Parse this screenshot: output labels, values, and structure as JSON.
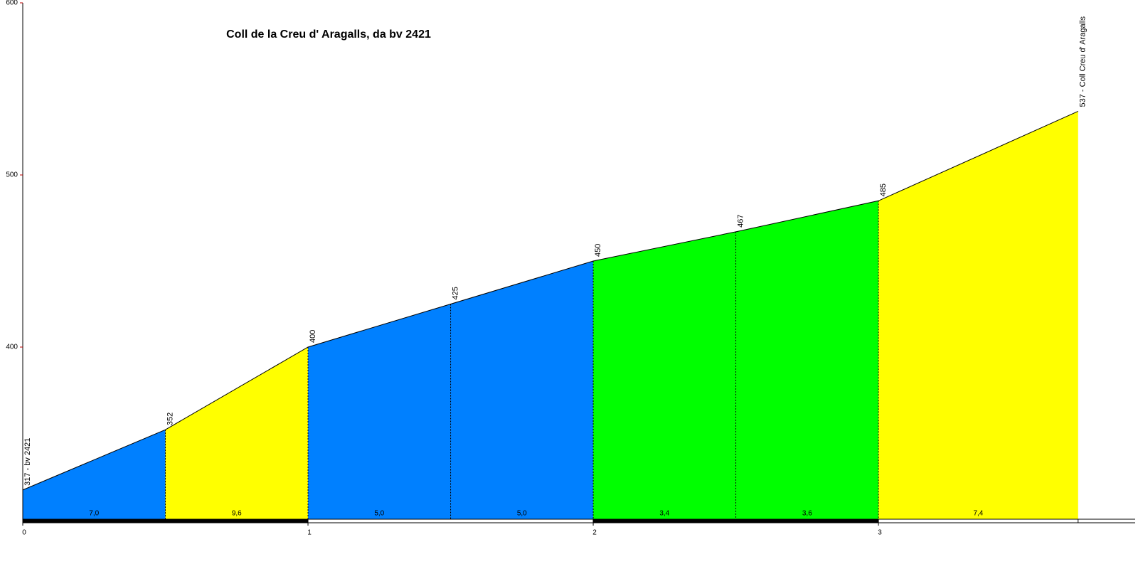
{
  "chart_data": {
    "type": "profile",
    "title": "Coll de la Creu d' Aragalls, da bv 2421",
    "x": [
      0,
      0.5,
      1,
      1.5,
      2,
      2.5,
      3,
      3.7
    ],
    "values": [
      317,
      352,
      400,
      425,
      450,
      467,
      485,
      537
    ],
    "value_labels": [
      "317 - bv 2421",
      "352",
      "400",
      "425",
      "450",
      "467",
      "485",
      "537 - Coll Creu d' Aragalls"
    ],
    "segments": {
      "values": [
        7.0,
        9.6,
        5.0,
        5.0,
        3.4,
        3.6,
        7.4
      ],
      "value_labels": [
        "7,0",
        "9,6",
        "5,0",
        "5,0",
        "3,4",
        "3,6",
        "7,4"
      ],
      "colors": [
        "#0080ff",
        "#ffff00",
        "#0080ff",
        "#0080ff",
        "#00ff00",
        "#00ff00",
        "#ffff00"
      ]
    },
    "xlim": [
      0,
      3.9
    ],
    "xticks": [
      0,
      1,
      2,
      3
    ],
    "ylim": [
      300,
      600
    ],
    "yticks": [
      400,
      500,
      600
    ]
  }
}
